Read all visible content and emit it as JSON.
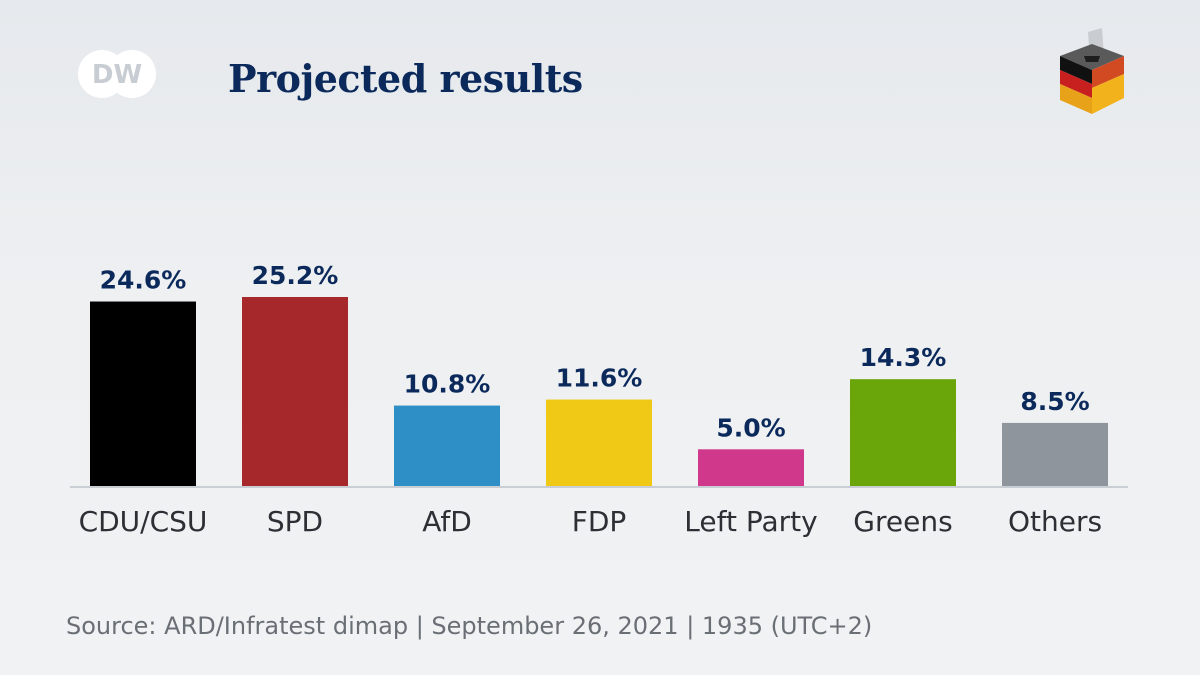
{
  "header": {
    "logo_text": "DW",
    "title": "Projected results"
  },
  "icons": {
    "logo": "dw-logo-icon",
    "ballot": "ballot-box-icon"
  },
  "chart_data": {
    "type": "bar",
    "title": "Projected results",
    "categories": [
      "CDU/CSU",
      "SPD",
      "AfD",
      "FDP",
      "Left Party",
      "Greens",
      "Others"
    ],
    "values": [
      24.6,
      25.2,
      10.8,
      11.6,
      5.0,
      14.3,
      8.5
    ],
    "value_labels": [
      "24.6%",
      "25.2%",
      "10.8%",
      "11.6%",
      "5.0%",
      "14.3%",
      "8.5%"
    ],
    "colors": [
      "#000000",
      "#a7282b",
      "#2e8ec6",
      "#f0c816",
      "#d0388c",
      "#6aa50a",
      "#8f959c"
    ],
    "xlabel": "",
    "ylabel": "",
    "ylim": [
      0,
      25.2
    ],
    "unit": "%",
    "grid": false,
    "legend": "none"
  },
  "footer": {
    "source": "Source: ARD/Infratest dimap | September 26, 2021 | 1935 (UTC+2)"
  }
}
